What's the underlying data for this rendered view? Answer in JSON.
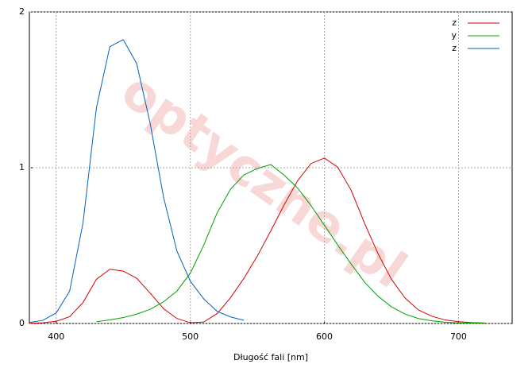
{
  "chart_data": {
    "type": "line",
    "watermark": "optyczne.pl",
    "x_label": "Długość fali [nm]",
    "x": [
      380,
      390,
      400,
      410,
      420,
      430,
      440,
      450,
      460,
      470,
      480,
      490,
      500,
      510,
      520,
      530,
      540,
      550,
      560,
      570,
      580,
      590,
      600,
      610,
      620,
      630,
      640,
      650,
      660,
      670,
      680,
      690,
      700,
      710,
      720
    ],
    "series": [
      {
        "name": "z",
        "color": "#d40000",
        "values": [
          0.0014,
          0.0042,
          0.0143,
          0.0435,
          0.1344,
          0.2839,
          0.3483,
          0.3362,
          0.2908,
          0.1954,
          0.0956,
          0.032,
          0.0049,
          0.0093,
          0.0633,
          0.1655,
          0.2904,
          0.4334,
          0.5945,
          0.7621,
          0.9163,
          1.0263,
          1.0622,
          1.0026,
          0.8544,
          0.6424,
          0.4479,
          0.2835,
          0.1649,
          0.0874,
          0.0468,
          0.0227,
          0.0114,
          0.0058,
          0.0029
        ]
      },
      {
        "name": "y",
        "color": "#00a000",
        "values": [
          null,
          null,
          null,
          null,
          null,
          0.0116,
          0.023,
          0.038,
          0.06,
          0.091,
          0.139,
          0.208,
          0.323,
          0.503,
          0.71,
          0.862,
          0.954,
          0.995,
          1.02,
          0.952,
          0.87,
          0.757,
          0.631,
          0.503,
          0.381,
          0.265,
          0.175,
          0.107,
          0.061,
          0.032,
          0.017,
          0.0082,
          0.0041,
          0.0021,
          0.001
        ]
      },
      {
        "name": "z",
        "color": "#0060c0",
        "values": [
          0.0065,
          0.0201,
          0.0679,
          0.2074,
          0.6456,
          1.3856,
          1.7771,
          1.8221,
          1.6692,
          1.2876,
          0.813,
          0.4652,
          0.272,
          0.1582,
          0.0782,
          0.0422,
          0.0203,
          null,
          null,
          null,
          null,
          null,
          null,
          null,
          null,
          null,
          null,
          null,
          null,
          null,
          null,
          null,
          null,
          null,
          null
        ]
      }
    ],
    "xlim": [
      380,
      740
    ],
    "ylim": [
      0,
      2
    ],
    "xticks": [
      400,
      500,
      600,
      700
    ],
    "yticks": [
      0,
      1,
      2
    ],
    "grid": true,
    "legend": "top-right"
  }
}
